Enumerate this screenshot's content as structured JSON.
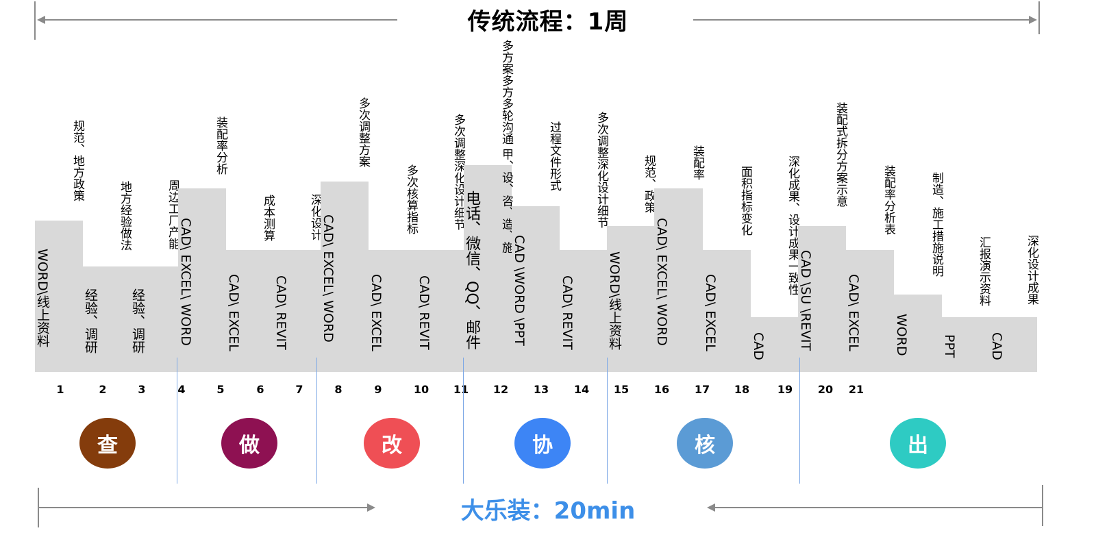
{
  "header": {
    "title": "传统流程：1周"
  },
  "footer": {
    "title": "大乐装：20min"
  },
  "columns": [
    {
      "num": "1",
      "top": "规范、地方政策",
      "bottom": "WORD\\线上资料"
    },
    {
      "num": "2",
      "top": "地方经验做法",
      "bottom": "经验、调研"
    },
    {
      "num": "3",
      "top": "周边工厂产能",
      "bottom": "经验、调研"
    },
    {
      "num": "4",
      "top": "装配率分析",
      "bottom": "CAD\\ EXCEL\\ WORD"
    },
    {
      "num": "5",
      "top": "成本测算",
      "bottom": "CAD\\ EXCEL"
    },
    {
      "num": "6",
      "top": "深化设计",
      "bottom": "CAD\\ REVIT"
    },
    {
      "num": "7",
      "top": "多次调整方案",
      "bottom": "CAD\\ EXCEL\\ WORD"
    },
    {
      "num": "8",
      "top": "多次核算指标",
      "bottom": "CAD\\ EXCEL"
    },
    {
      "num": "9",
      "top": "多次调整深化设计细节",
      "bottom": "CAD\\ REVIT"
    },
    {
      "num": "10",
      "top": "多方案多方多轮沟通 甲、设、咨、造、施",
      "bottom": "电话、微信、QQ、邮件"
    },
    {
      "num": "11",
      "top": "过程文件形式",
      "bottom": "CAD \\WORD \\PPT"
    },
    {
      "num": "12",
      "top": "多次调整深化设计细节",
      "bottom": "CAD\\ REVIT"
    },
    {
      "num": "13",
      "top": "规范、政策",
      "bottom": "WORD\\线上资料"
    },
    {
      "num": "14",
      "top": "装配率",
      "bottom": "CAD\\ EXCEL\\ WORD"
    },
    {
      "num": "15",
      "top": "面积指标变化",
      "bottom": "CAD\\ EXCEL"
    },
    {
      "num": "16",
      "top": "深化成果、设计成果一致性",
      "bottom": "CAD"
    },
    {
      "num": "17",
      "top": "装配式拆分方案示意",
      "bottom": "CAD \\SU \\REVIT"
    },
    {
      "num": "18",
      "top": "装配率分析表",
      "bottom": "CAD\\ EXCEL"
    },
    {
      "num": "19",
      "top": "制造、施工措施说明",
      "bottom": "WORD"
    },
    {
      "num": "20",
      "top": "汇报演示资料",
      "bottom": "PPT"
    },
    {
      "num": "21",
      "top": "深化设计成果",
      "bottom": "CAD"
    }
  ],
  "phases": [
    {
      "label": "查",
      "color": "#843c0c"
    },
    {
      "label": "做",
      "color": "#8e1152"
    },
    {
      "label": "改",
      "color": "#ef4f55"
    },
    {
      "label": "协",
      "color": "#3d85f5"
    },
    {
      "label": "核",
      "color": "#5b9bd5"
    },
    {
      "label": "出",
      "color": "#2ecbc3"
    }
  ]
}
